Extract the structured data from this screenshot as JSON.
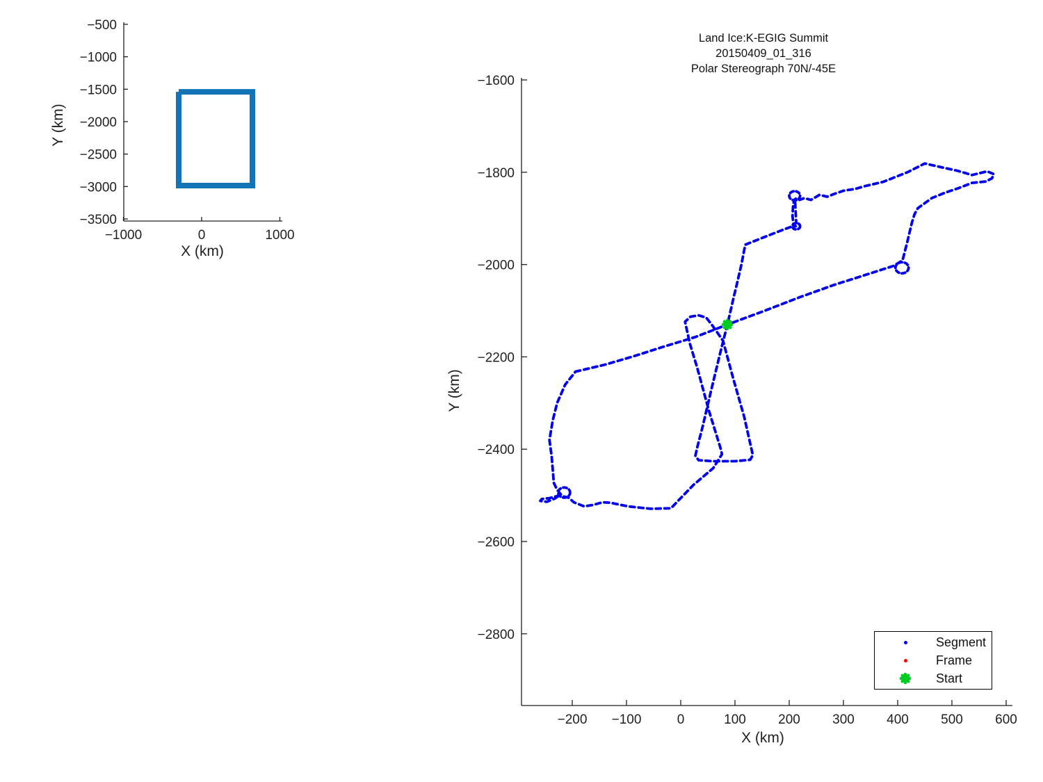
{
  "chart_data": [
    {
      "type": "line",
      "name": "overview-map",
      "title": "",
      "xlabel": "X (km)",
      "ylabel": "Y (km)",
      "xticks": [
        -1000,
        0,
        1000
      ],
      "yticks": [
        -500,
        -1000,
        -1500,
        -2000,
        -2500,
        -3000,
        -3500
      ],
      "xlim": [
        -1000,
        1030
      ],
      "ylim": [
        -3500,
        -465
      ],
      "grid": false,
      "line_color": "#1273B6",
      "line_width": 8,
      "series": [
        {
          "name": "coverage-box",
          "points": [
            [
              -293,
              -1540
            ],
            [
              649,
              -1540
            ],
            [
              649,
              -2986
            ],
            [
              -293,
              -2986
            ],
            [
              -293,
              -1540
            ]
          ]
        }
      ]
    },
    {
      "type": "line",
      "name": "flight-track",
      "title_lines": [
        "Land Ice:K-EGIG Summit",
        "20150409_01_316",
        "Polar Stereograph 70N/-45E"
      ],
      "xlabel": "X (km)",
      "ylabel": "Y (km)",
      "xticks": [
        -200,
        -100,
        0,
        100,
        200,
        300,
        400,
        500,
        600
      ],
      "yticks": [
        -1600,
        -1800,
        -2000,
        -2200,
        -2400,
        -2600,
        -2800
      ],
      "xlim": [
        -295,
        612
      ],
      "ylim": [
        -2955,
        -1595
      ],
      "grid": false,
      "colors": {
        "segment": "#0000EE",
        "frame": "#FF0000",
        "start": "#00CC22"
      },
      "legend": {
        "position": "bottom-right",
        "items": [
          {
            "label": "Segment",
            "marker": "dot",
            "color": "#0000EE"
          },
          {
            "label": "Frame",
            "marker": "dot",
            "color": "#FF0000"
          },
          {
            "label": "Start",
            "marker": "star",
            "color": "#00CC22"
          }
        ]
      },
      "start_point": {
        "x": 86,
        "y": -2130
      },
      "loops": [
        {
          "x": 408,
          "y": -2007,
          "r": 12
        },
        {
          "x": 210,
          "y": -1851,
          "r": 10
        },
        {
          "x": 213,
          "y": -1917,
          "r": 7
        },
        {
          "x": -215,
          "y": -2494,
          "r": 11
        }
      ],
      "series": [
        {
          "name": "Segment",
          "points": [
            [
              -194,
              -2232
            ],
            [
              -140,
              -2217
            ],
            [
              -85,
              -2198
            ],
            [
              -37,
              -2180
            ],
            [
              27,
              -2157
            ],
            [
              86,
              -2130
            ],
            [
              155,
              -2100
            ],
            [
              219,
              -2071
            ],
            [
              283,
              -2044
            ],
            [
              347,
              -2020
            ],
            [
              392,
              -2003
            ],
            [
              402,
              -1996
            ],
            [
              409,
              -1991
            ],
            [
              418,
              -1950
            ],
            [
              426,
              -1910
            ],
            [
              431,
              -1891
            ],
            [
              437,
              -1878
            ],
            [
              463,
              -1856
            ],
            [
              488,
              -1844
            ],
            [
              511,
              -1835
            ],
            [
              537,
              -1823
            ],
            [
              563,
              -1820
            ],
            [
              574,
              -1813
            ],
            [
              577,
              -1804
            ],
            [
              565,
              -1798
            ],
            [
              537,
              -1806
            ],
            [
              511,
              -1797
            ],
            [
              480,
              -1789
            ],
            [
              450,
              -1781
            ],
            [
              418,
              -1800
            ],
            [
              373,
              -1821
            ],
            [
              340,
              -1830
            ],
            [
              322,
              -1836
            ],
            [
              300,
              -1840
            ],
            [
              283,
              -1847
            ],
            [
              270,
              -1853
            ],
            [
              256,
              -1849
            ],
            [
              240,
              -1860
            ],
            [
              228,
              -1856
            ],
            [
              219,
              -1860
            ],
            [
              214,
              -1856
            ],
            [
              209,
              -1860
            ],
            [
              207,
              -1875
            ],
            [
              206,
              -1895
            ],
            [
              208,
              -1912
            ],
            [
              212,
              -1917
            ],
            [
              204,
              -1918
            ],
            [
              190,
              -1924
            ],
            [
              155,
              -1940
            ],
            [
              119,
              -1957
            ],
            [
              112,
              -1999
            ],
            [
              104,
              -2040
            ],
            [
              97,
              -2074
            ],
            [
              86,
              -2130
            ],
            [
              72,
              -2195
            ],
            [
              55,
              -2278
            ],
            [
              40,
              -2353
            ],
            [
              30,
              -2398
            ],
            [
              27,
              -2414
            ],
            [
              33,
              -2424
            ],
            [
              60,
              -2426
            ],
            [
              100,
              -2426
            ],
            [
              128,
              -2423
            ],
            [
              133,
              -2413
            ],
            [
              117,
              -2330
            ],
            [
              97,
              -2248
            ],
            [
              78,
              -2165
            ],
            [
              65,
              -2143
            ],
            [
              57,
              -2130
            ],
            [
              47,
              -2115
            ],
            [
              33,
              -2110
            ],
            [
              18,
              -2113
            ],
            [
              8,
              -2124
            ],
            [
              17,
              -2172
            ],
            [
              30,
              -2222
            ],
            [
              52,
              -2317
            ],
            [
              74,
              -2400
            ],
            [
              76,
              -2411
            ],
            [
              60,
              -2441
            ],
            [
              23,
              -2478
            ],
            [
              -5,
              -2512
            ],
            [
              -18,
              -2528
            ],
            [
              -56,
              -2529
            ],
            [
              -97,
              -2524
            ],
            [
              -130,
              -2516
            ],
            [
              -144,
              -2515
            ],
            [
              -162,
              -2521
            ],
            [
              -178,
              -2524
            ],
            [
              -197,
              -2515
            ],
            [
              -207,
              -2505
            ],
            [
              -214,
              -2503
            ],
            [
              -226,
              -2501
            ],
            [
              -242,
              -2506
            ],
            [
              -256,
              -2508
            ],
            [
              -259,
              -2512
            ],
            [
              -247,
              -2514
            ],
            [
              -232,
              -2507
            ],
            [
              -221,
              -2498
            ],
            [
              -228,
              -2488
            ],
            [
              -234,
              -2473
            ],
            [
              -238,
              -2416
            ],
            [
              -242,
              -2380
            ],
            [
              -236,
              -2338
            ],
            [
              -228,
              -2300
            ],
            [
              -213,
              -2260
            ],
            [
              -194,
              -2232
            ]
          ]
        },
        {
          "name": "bowtie-return",
          "points": [
            [
              211,
              -1866
            ],
            [
              212,
              -1890
            ],
            [
              213,
              -1910
            ]
          ]
        }
      ]
    }
  ]
}
